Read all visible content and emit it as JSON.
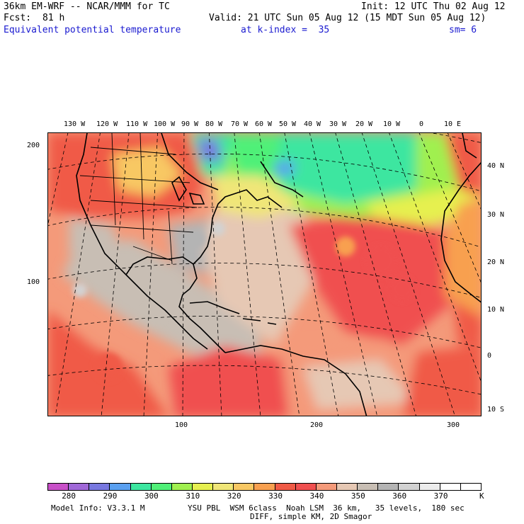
{
  "header": {
    "model": "36km EM-WRF -- NCAR/MMM for TC",
    "init": "Init: 12 UTC Thu 02 Aug 12",
    "fcst_label": "Fcst:",
    "fcst_value": "81 h",
    "valid": "Valid: 21 UTC Sun 05 Aug 12 (15 MDT Sun 05 Aug 12)",
    "field": "Equivalent potential temperature",
    "level": "at k-index =  35",
    "smooth": "sm= 6"
  },
  "map": {
    "top_longitudes": [
      "130 W",
      "120 W",
      "110 W",
      "100 W",
      "90 W",
      "80 W",
      "70 W",
      "60 W",
      "50 W",
      "40 W",
      "30 W",
      "20 W",
      "10 W",
      "0",
      "10 E"
    ],
    "right_latitudes": [
      "40 N",
      "30 N",
      "20 N",
      "10 N",
      "0",
      "10 S"
    ],
    "left_grid": [
      "200",
      "100"
    ],
    "bottom_grid": [
      "100",
      "200",
      "300"
    ]
  },
  "colorbar": {
    "labels": [
      "280",
      "290",
      "300",
      "310",
      "320",
      "330",
      "340",
      "350",
      "360",
      "370"
    ],
    "unit": "K",
    "colors": [
      "#c850c8",
      "#a068d8",
      "#7878e0",
      "#5aa0f0",
      "#3ce6a0",
      "#50f078",
      "#a0f050",
      "#e6f050",
      "#f0e678",
      "#f8c864",
      "#f8a050",
      "#f05a46",
      "#f05050",
      "#f49a7a",
      "#e6c8b4",
      "#c8beb4",
      "#b4b4b4",
      "#d2d2d2",
      "#ececec",
      "#ffffff",
      "#ffffff"
    ]
  },
  "footer": {
    "line1a": "Model Info: V3.3.1 M",
    "line1b": "YSU PBL  WSM 6class  Noah LSM  36 km,   35 levels,  180 sec",
    "line2": "DIFF, simple KM, 2D Smagor"
  }
}
